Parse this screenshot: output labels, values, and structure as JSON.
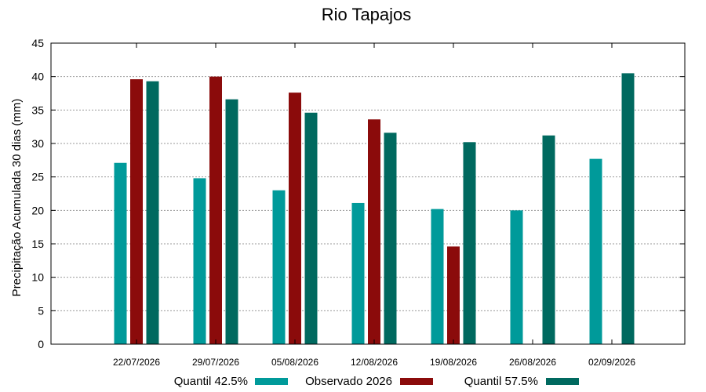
{
  "chart_data": {
    "type": "bar",
    "title": "Rio Tapajos",
    "xlabel": "",
    "ylabel": "Precipitação Acumulada 30 dias (mm)",
    "ylim": [
      0,
      45
    ],
    "yticks": [
      0,
      5,
      10,
      15,
      20,
      25,
      30,
      35,
      40,
      45
    ],
    "grid": true,
    "legend_position": "bottom",
    "categories": [
      "22/07/2026",
      "29/07/2026",
      "05/08/2026",
      "12/08/2026",
      "19/08/2026",
      "26/08/2026",
      "02/09/2026"
    ],
    "series": [
      {
        "name": "Quantil 42.5%",
        "color": "#009a9a",
        "values": [
          27.1,
          24.8,
          23.0,
          21.1,
          20.2,
          20.0,
          27.7
        ]
      },
      {
        "name": "Observado 2026",
        "color": "#8b0b0b",
        "values": [
          39.6,
          40.0,
          37.6,
          33.6,
          14.6,
          null,
          null
        ]
      },
      {
        "name": "Quantil 57.5%",
        "color": "#00695f",
        "values": [
          39.3,
          36.6,
          34.6,
          31.6,
          30.2,
          31.2,
          40.5
        ]
      }
    ]
  }
}
